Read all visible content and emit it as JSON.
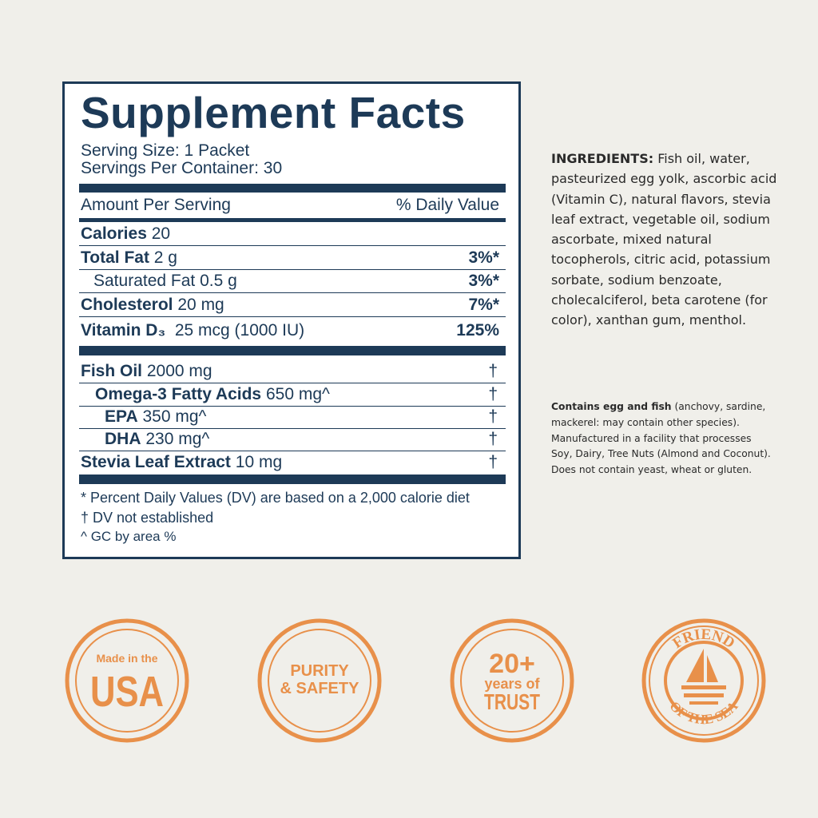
{
  "facts": {
    "title": "Supplement Facts",
    "serving_size": "Serving Size: 1 Packet",
    "servings_per_container": "Servings Per Container: 30",
    "amount_header": "Amount Per Serving",
    "dv_header": "% Daily Value",
    "rows": [
      {
        "name": "Calories",
        "amount": "20",
        "dv": ""
      },
      {
        "name": "Total Fat",
        "amount": "2 g",
        "dv": "3%*"
      },
      {
        "name": "",
        "amount": "Saturated Fat 0.5 g",
        "dv": "3%*"
      },
      {
        "name": "Cholesterol",
        "amount": "20 mg",
        "dv": "7%*"
      },
      {
        "name": "Vitamin D₃",
        "amount": "25 mcg (1000 IU)",
        "dv": "125%"
      }
    ],
    "other_rows": [
      {
        "name": "Fish Oil",
        "amount": "2000 mg",
        "dv": "†"
      },
      {
        "name": "Omega-3 Fatty Acids",
        "amount": "650 mg^",
        "dv": "†"
      },
      {
        "name": "EPA",
        "amount": "350 mg^",
        "dv": "†"
      },
      {
        "name": "DHA",
        "amount": "230 mg^",
        "dv": "†"
      },
      {
        "name": "Stevia Leaf Extract",
        "amount": "10 mg",
        "dv": "†"
      }
    ],
    "footnotes": [
      "* Percent Daily Values (DV) are based on a 2,000 calorie diet",
      "† DV not established",
      "^ GC by area %"
    ]
  },
  "ingredients": {
    "label": "INGREDIENTS:",
    "text": "Fish oil, water, pasteurized egg yolk, ascorbic acid (Vitamin C), natural flavors, stevia leaf extract, vegetable oil, sodium ascorbate, mixed natural tocopherols, citric acid, potassium sorbate, sodium benzoate, cholecalciferol, beta carotene (for color), xanthan gum, menthol."
  },
  "allergens": {
    "label": "Contains egg and fish",
    "text": "(anchovy, sardine, mackerel: may contain other species). Manufactured in a facility that processes Soy, Dairy, Tree Nuts (Almond and Coconut). Does not contain yeast, wheat or gluten."
  },
  "badges": [
    {
      "line1": "Made in the",
      "line2": "USA"
    },
    {
      "line1": "PURITY",
      "line2": "& SAFETY"
    },
    {
      "line1": "20+",
      "line2": "years of",
      "line3": "TRUST"
    },
    {
      "line1": "FRIEND",
      "line2": "OF THE SEA"
    }
  ],
  "colors": {
    "navy": "#1d3a57",
    "orange": "#e8904a",
    "background": "#f0efea"
  }
}
